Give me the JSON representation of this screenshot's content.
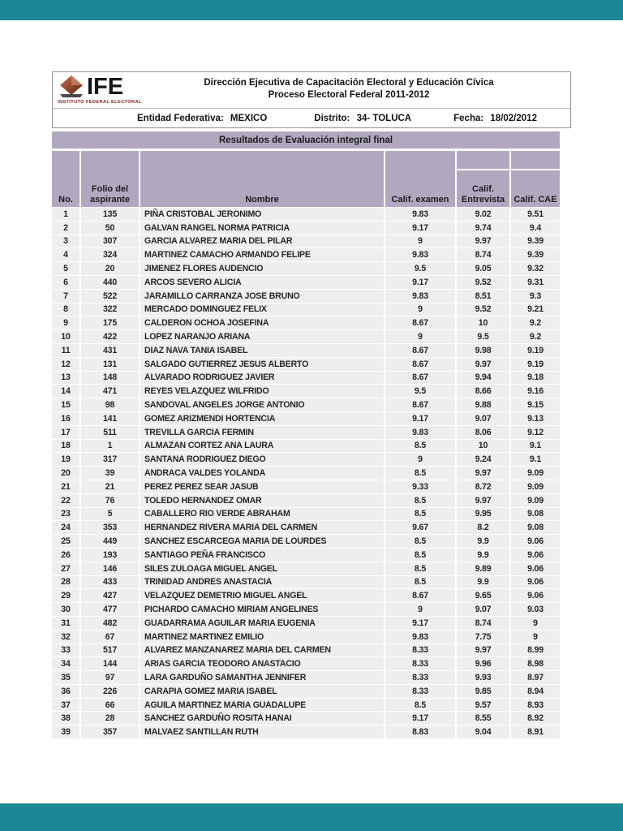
{
  "viewer": {
    "bar_color": "#1a8795"
  },
  "logo": {
    "brand": "IFE",
    "subtitle": "INSTITUTO FEDERAL ELECTORAL"
  },
  "header": {
    "title_line1": "Dirección Ejecutiva de Capacitación Electoral y Educación Cívica",
    "title_line2": "Proceso Electoral Federal 2011-2012",
    "entidad_label": "Entidad Federativa:",
    "entidad_value": "MEXICO",
    "distrito_label": "Distrito:",
    "distrito_value": "34- TOLUCA",
    "fecha_label": "Fecha:",
    "fecha_value": "18/02/2012"
  },
  "banner": {
    "title": "Resultados de Evaluación integral final",
    "bg": "#b1a8c0"
  },
  "table": {
    "col_headers": {
      "no": "No.",
      "folio": "Folio del aspirante",
      "nombre": "Nombre",
      "examen": "Calif. examen",
      "entrevista": "Calif. Entrevista",
      "cae": "Calif. CAE"
    },
    "rows": [
      {
        "no": "1",
        "folio": "135",
        "nombre": "PIÑA CRISTOBAL JERONIMO",
        "examen": "9.83",
        "entrevista": "9.02",
        "cae": "9.51"
      },
      {
        "no": "2",
        "folio": "50",
        "nombre": "GALVAN RANGEL NORMA PATRICIA",
        "examen": "9.17",
        "entrevista": "9.74",
        "cae": "9.4"
      },
      {
        "no": "3",
        "folio": "307",
        "nombre": "GARCIA ALVAREZ MARIA DEL PILAR",
        "examen": "9",
        "entrevista": "9.97",
        "cae": "9.39"
      },
      {
        "no": "4",
        "folio": "324",
        "nombre": "MARTINEZ CAMACHO ARMANDO FELIPE",
        "examen": "9.83",
        "entrevista": "8.74",
        "cae": "9.39"
      },
      {
        "no": "5",
        "folio": "20",
        "nombre": "JIMENEZ FLORES AUDENCIO",
        "examen": "9.5",
        "entrevista": "9.05",
        "cae": "9.32"
      },
      {
        "no": "6",
        "folio": "440",
        "nombre": "ARCOS SEVERO ALICIA",
        "examen": "9.17",
        "entrevista": "9.52",
        "cae": "9.31"
      },
      {
        "no": "7",
        "folio": "522",
        "nombre": "JARAMILLO CARRANZA JOSE BRUNO",
        "examen": "9.83",
        "entrevista": "8.51",
        "cae": "9.3"
      },
      {
        "no": "8",
        "folio": "322",
        "nombre": "MERCADO DOMINGUEZ FELIX",
        "examen": "9",
        "entrevista": "9.52",
        "cae": "9.21"
      },
      {
        "no": "9",
        "folio": "175",
        "nombre": "CALDERON OCHOA JOSEFINA",
        "examen": "8.67",
        "entrevista": "10",
        "cae": "9.2"
      },
      {
        "no": "10",
        "folio": "422",
        "nombre": "LOPEZ NARANJO ARIANA",
        "examen": "9",
        "entrevista": "9.5",
        "cae": "9.2"
      },
      {
        "no": "11",
        "folio": "431",
        "nombre": "DIAZ NAVA TANIA ISABEL",
        "examen": "8.67",
        "entrevista": "9.98",
        "cae": "9.19"
      },
      {
        "no": "12",
        "folio": "131",
        "nombre": "SALGADO GUTIERREZ JESUS ALBERTO",
        "examen": "8.67",
        "entrevista": "9.97",
        "cae": "9.19"
      },
      {
        "no": "13",
        "folio": "148",
        "nombre": "ALVARADO RODRIGUEZ JAVIER",
        "examen": "8.67",
        "entrevista": "9.94",
        "cae": "9.18"
      },
      {
        "no": "14",
        "folio": "471",
        "nombre": "REYES VELAZQUEZ WILFRIDO",
        "examen": "9.5",
        "entrevista": "8.66",
        "cae": "9.16"
      },
      {
        "no": "15",
        "folio": "98",
        "nombre": "SANDOVAL ANGELES JORGE ANTONIO",
        "examen": "8.67",
        "entrevista": "9.88",
        "cae": "9.15"
      },
      {
        "no": "16",
        "folio": "141",
        "nombre": "GOMEZ ARIZMENDI HORTENCIA",
        "examen": "9.17",
        "entrevista": "9.07",
        "cae": "9.13"
      },
      {
        "no": "17",
        "folio": "511",
        "nombre": "TREVILLA GARCIA FERMIN",
        "examen": "9.83",
        "entrevista": "8.06",
        "cae": "9.12"
      },
      {
        "no": "18",
        "folio": "1",
        "nombre": "ALMAZAN CORTEZ ANA LAURA",
        "examen": "8.5",
        "entrevista": "10",
        "cae": "9.1"
      },
      {
        "no": "19",
        "folio": "317",
        "nombre": "SANTANA RODRIGUEZ DIEGO",
        "examen": "9",
        "entrevista": "9.24",
        "cae": "9.1"
      },
      {
        "no": "20",
        "folio": "39",
        "nombre": "ANDRACA VALDES YOLANDA",
        "examen": "8.5",
        "entrevista": "9.97",
        "cae": "9.09"
      },
      {
        "no": "21",
        "folio": "21",
        "nombre": "PEREZ PEREZ SEAR JASUB",
        "examen": "9.33",
        "entrevista": "8.72",
        "cae": "9.09"
      },
      {
        "no": "22",
        "folio": "76",
        "nombre": "TOLEDO HERNANDEZ OMAR",
        "examen": "8.5",
        "entrevista": "9.97",
        "cae": "9.09"
      },
      {
        "no": "23",
        "folio": "5",
        "nombre": "CABALLERO RIO VERDE ABRAHAM",
        "examen": "8.5",
        "entrevista": "9.95",
        "cae": "9.08"
      },
      {
        "no": "24",
        "folio": "353",
        "nombre": "HERNANDEZ RIVERA MARIA DEL CARMEN",
        "examen": "9.67",
        "entrevista": "8.2",
        "cae": "9.08"
      },
      {
        "no": "25",
        "folio": "449",
        "nombre": "SANCHEZ ESCARCEGA MARIA DE LOURDES",
        "examen": "8.5",
        "entrevista": "9.9",
        "cae": "9.06"
      },
      {
        "no": "26",
        "folio": "193",
        "nombre": "SANTIAGO PEÑA FRANCISCO",
        "examen": "8.5",
        "entrevista": "9.9",
        "cae": "9.06"
      },
      {
        "no": "27",
        "folio": "146",
        "nombre": "SILES ZULOAGA MIGUEL ANGEL",
        "examen": "8.5",
        "entrevista": "9.89",
        "cae": "9.06"
      },
      {
        "no": "28",
        "folio": "433",
        "nombre": "TRINIDAD ANDRES ANASTACIA",
        "examen": "8.5",
        "entrevista": "9.9",
        "cae": "9.06"
      },
      {
        "no": "29",
        "folio": "427",
        "nombre": "VELAZQUEZ DEMETRIO MIGUEL ANGEL",
        "examen": "8.67",
        "entrevista": "9.65",
        "cae": "9.06"
      },
      {
        "no": "30",
        "folio": "477",
        "nombre": "PICHARDO CAMACHO MIRIAM ANGELINES",
        "examen": "9",
        "entrevista": "9.07",
        "cae": "9.03"
      },
      {
        "no": "31",
        "folio": "482",
        "nombre": "GUADARRAMA AGUILAR MARIA EUGENIA",
        "examen": "9.17",
        "entrevista": "8.74",
        "cae": "9"
      },
      {
        "no": "32",
        "folio": "67",
        "nombre": "MARTINEZ MARTINEZ EMILIO",
        "examen": "9.83",
        "entrevista": "7.75",
        "cae": "9"
      },
      {
        "no": "33",
        "folio": "517",
        "nombre": "ALVAREZ MANZANAREZ MARIA DEL CARMEN",
        "examen": "8.33",
        "entrevista": "9.97",
        "cae": "8.99"
      },
      {
        "no": "34",
        "folio": "144",
        "nombre": "ARIAS GARCIA TEODORO ANASTACIO",
        "examen": "8.33",
        "entrevista": "9.96",
        "cae": "8.98"
      },
      {
        "no": "35",
        "folio": "97",
        "nombre": "LARA GARDUÑO SAMANTHA JENNIFER",
        "examen": "8.33",
        "entrevista": "9.93",
        "cae": "8.97"
      },
      {
        "no": "36",
        "folio": "226",
        "nombre": "CARAPIA GOMEZ MARIA ISABEL",
        "examen": "8.33",
        "entrevista": "9.85",
        "cae": "8.94"
      },
      {
        "no": "37",
        "folio": "66",
        "nombre": "AGUILA MARTINEZ MARIA GUADALUPE",
        "examen": "8.5",
        "entrevista": "9.57",
        "cae": "8.93"
      },
      {
        "no": "38",
        "folio": "28",
        "nombre": "SANCHEZ GARDUÑO ROSITA HANAI",
        "examen": "9.17",
        "entrevista": "8.55",
        "cae": "8.92"
      },
      {
        "no": "39",
        "folio": "357",
        "nombre": "MALVAEZ SANTILLAN RUTH",
        "examen": "8.83",
        "entrevista": "9.04",
        "cae": "8.91"
      }
    ]
  }
}
